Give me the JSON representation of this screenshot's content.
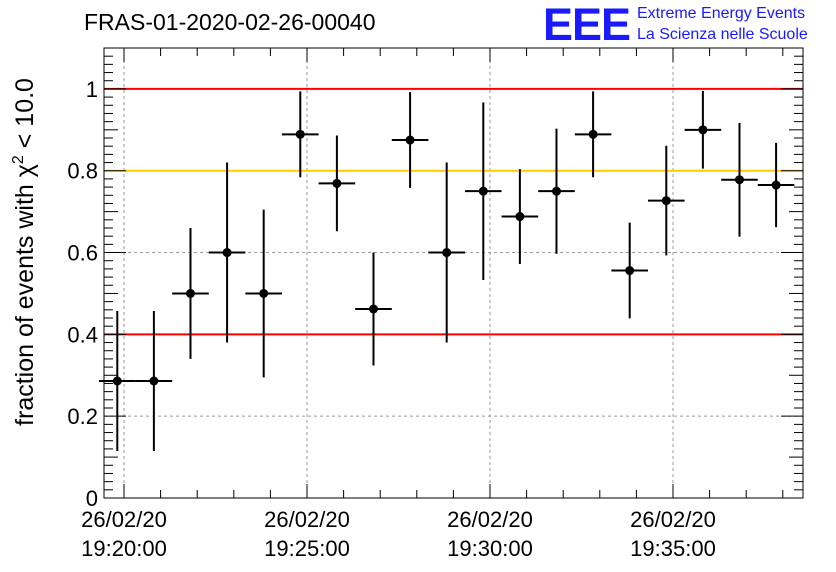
{
  "header": {
    "title": "FRAS-01-2020-02-26-00040",
    "logo_mark": "EEE",
    "logo_line1": "Extreme Energy Events",
    "logo_line2": "La Scienza nelle Scuole"
  },
  "chart_data": {
    "type": "scatter",
    "title": "FRAS-01-2020-02-26-00040",
    "ylabel": "fraction of events with χ² < 10.0",
    "xlabel": "",
    "ylim": [
      0,
      1.1
    ],
    "yticks": [
      "0",
      "0.2",
      "0.4",
      "0.6",
      "0.8",
      "1"
    ],
    "xticks": [
      {
        "date": "26/02/20",
        "time": "19:20:00"
      },
      {
        "date": "26/02/20",
        "time": "19:25:00"
      },
      {
        "date": "26/02/20",
        "time": "19:30:00"
      },
      {
        "date": "26/02/20",
        "time": "19:35:00"
      }
    ],
    "grid": true,
    "reference_lines": [
      {
        "y": 1.0,
        "color": "#ff0000"
      },
      {
        "y": 0.8,
        "color": "#ffcc00"
      },
      {
        "y": 0.4,
        "color": "#ff0000"
      }
    ],
    "series": [
      {
        "points": [
          {
            "x": "19:19:49",
            "y": 0.286,
            "yerr_low": 0.171,
            "yerr_high": 0.171,
            "xerr_s": 30
          },
          {
            "x": "19:20:49",
            "y": 0.286,
            "yerr_low": 0.171,
            "yerr_high": 0.171,
            "xerr_s": 30
          },
          {
            "x": "19:21:49",
            "y": 0.5,
            "yerr_low": 0.16,
            "yerr_high": 0.16,
            "xerr_s": 30
          },
          {
            "x": "19:22:49",
            "y": 0.6,
            "yerr_low": 0.22,
            "yerr_high": 0.22,
            "xerr_s": 30
          },
          {
            "x": "19:23:49",
            "y": 0.5,
            "yerr_low": 0.205,
            "yerr_high": 0.205,
            "xerr_s": 30
          },
          {
            "x": "19:24:49",
            "y": 0.889,
            "yerr_low": 0.105,
            "yerr_high": 0.105,
            "xerr_s": 30
          },
          {
            "x": "19:25:49",
            "y": 0.769,
            "yerr_low": 0.117,
            "yerr_high": 0.117,
            "xerr_s": 30
          },
          {
            "x": "19:26:49",
            "y": 0.462,
            "yerr_low": 0.138,
            "yerr_high": 0.138,
            "xerr_s": 30
          },
          {
            "x": "19:27:49",
            "y": 0.875,
            "yerr_low": 0.117,
            "yerr_high": 0.117,
            "xerr_s": 30
          },
          {
            "x": "19:28:49",
            "y": 0.6,
            "yerr_low": 0.22,
            "yerr_high": 0.22,
            "xerr_s": 30
          },
          {
            "x": "19:29:49",
            "y": 0.75,
            "yerr_low": 0.217,
            "yerr_high": 0.217,
            "xerr_s": 30
          },
          {
            "x": "19:30:49",
            "y": 0.688,
            "yerr_low": 0.116,
            "yerr_high": 0.116,
            "xerr_s": 30
          },
          {
            "x": "19:31:49",
            "y": 0.75,
            "yerr_low": 0.153,
            "yerr_high": 0.153,
            "xerr_s": 30
          },
          {
            "x": "19:32:49",
            "y": 0.889,
            "yerr_low": 0.105,
            "yerr_high": 0.105,
            "xerr_s": 30
          },
          {
            "x": "19:33:49",
            "y": 0.556,
            "yerr_low": 0.117,
            "yerr_high": 0.117,
            "xerr_s": 30
          },
          {
            "x": "19:34:49",
            "y": 0.727,
            "yerr_low": 0.134,
            "yerr_high": 0.134,
            "xerr_s": 30
          },
          {
            "x": "19:35:49",
            "y": 0.9,
            "yerr_low": 0.095,
            "yerr_high": 0.095,
            "xerr_s": 30
          },
          {
            "x": "19:36:49",
            "y": 0.778,
            "yerr_low": 0.139,
            "yerr_high": 0.139,
            "xerr_s": 30
          },
          {
            "x": "19:37:49",
            "y": 0.765,
            "yerr_low": 0.103,
            "yerr_high": 0.103,
            "xerr_s": 30
          }
        ]
      }
    ],
    "colors": {
      "marker": "#000000",
      "axis": "#000000",
      "grid": "#9a9a9a"
    }
  }
}
